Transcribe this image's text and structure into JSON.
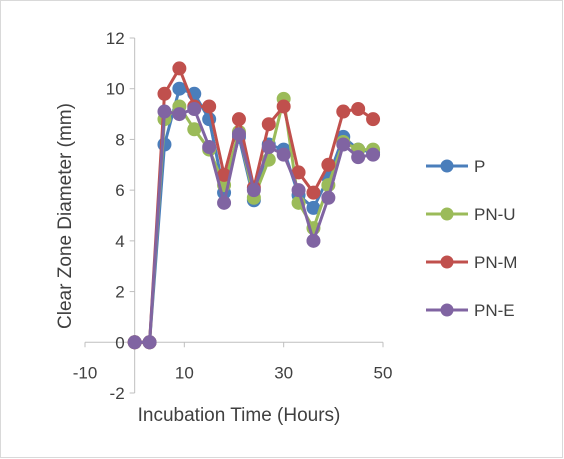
{
  "chart_data": {
    "type": "scatter",
    "mode": "lines+markers",
    "xlabel": "Incubation Time (Hours)",
    "ylabel": "Clear Zone Diameter (mm)",
    "xlim": [
      -10,
      50
    ],
    "ylim": [
      -2,
      12
    ],
    "xticks": [
      -10,
      10,
      30,
      50
    ],
    "yticks": [
      -2,
      0,
      2,
      4,
      6,
      8,
      10,
      12
    ],
    "grid": false,
    "legend_position": "right",
    "series": [
      {
        "name": "P",
        "color": "#4a7ebb",
        "x": [
          0,
          3,
          6,
          9,
          12,
          15,
          18,
          21,
          24,
          27,
          30,
          33,
          36,
          39,
          42,
          45,
          48
        ],
        "y": [
          0,
          0,
          7.8,
          10.0,
          9.8,
          8.8,
          5.9,
          8.1,
          5.6,
          7.8,
          7.6,
          5.8,
          5.3,
          6.5,
          8.1,
          7.6,
          7.5
        ]
      },
      {
        "name": "PN-U",
        "color": "#9bbb59",
        "x": [
          0,
          3,
          6,
          9,
          12,
          15,
          18,
          21,
          24,
          27,
          30,
          33,
          36,
          39,
          42,
          45,
          48
        ],
        "y": [
          0,
          0,
          8.8,
          9.3,
          8.4,
          7.6,
          6.2,
          8.3,
          5.7,
          7.2,
          9.6,
          5.5,
          4.5,
          6.2,
          7.9,
          7.6,
          7.6
        ]
      },
      {
        "name": "PN-M",
        "color": "#c0504d",
        "x": [
          0,
          3,
          6,
          9,
          12,
          15,
          18,
          21,
          24,
          27,
          30,
          33,
          36,
          39,
          42,
          45,
          48
        ],
        "y": [
          0,
          0,
          9.8,
          10.8,
          9.3,
          9.3,
          6.6,
          8.8,
          6.1,
          8.6,
          9.3,
          6.7,
          5.9,
          7.0,
          9.1,
          9.2,
          8.8
        ]
      },
      {
        "name": "PN-E",
        "color": "#8064a2",
        "x": [
          0,
          3,
          6,
          9,
          12,
          15,
          18,
          21,
          24,
          27,
          30,
          33,
          36,
          39,
          42,
          45,
          48
        ],
        "y": [
          0,
          0,
          9.1,
          9.0,
          9.2,
          7.7,
          5.5,
          8.2,
          6.0,
          7.7,
          7.4,
          6.0,
          4.0,
          5.7,
          7.8,
          7.3,
          7.4
        ]
      }
    ]
  }
}
